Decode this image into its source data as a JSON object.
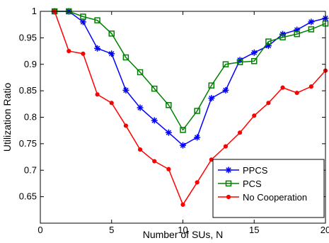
{
  "chart_data": {
    "type": "line",
    "xlabel": "Number of SUs, N",
    "ylabel": "Utilization Ratio",
    "xlim": [
      0,
      20
    ],
    "ylim": [
      0.6,
      1.0
    ],
    "xticks": [
      0,
      5,
      10,
      15,
      20
    ],
    "yticks": [
      0.65,
      0.7,
      0.75,
      0.8,
      0.85,
      0.9,
      0.95,
      1
    ],
    "xtick_labels": [
      "0",
      "5",
      "10",
      "15",
      "20"
    ],
    "ytick_labels": [
      "0.65",
      "0.7",
      "0.75",
      "0.8",
      "0.85",
      "0.9",
      "0.95",
      "1"
    ],
    "grid": false,
    "legend_position": "lower-right",
    "x": [
      1,
      2,
      3,
      4,
      5,
      6,
      7,
      8,
      9,
      10,
      11,
      12,
      13,
      14,
      15,
      16,
      17,
      18,
      19,
      20
    ],
    "series": [
      {
        "name": "PPCS",
        "color": "#0000ff",
        "marker": "asterisk",
        "values": [
          1.0,
          1.0,
          0.98,
          0.93,
          0.92,
          0.851,
          0.818,
          0.794,
          0.771,
          0.747,
          0.762,
          0.836,
          0.851,
          0.908,
          0.922,
          0.935,
          0.957,
          0.965,
          0.98,
          0.987
        ]
      },
      {
        "name": "PCS",
        "color": "#008000",
        "marker": "square",
        "values": [
          1.0,
          1.0,
          0.99,
          0.983,
          0.958,
          0.913,
          0.885,
          0.854,
          0.823,
          0.776,
          0.812,
          0.86,
          0.9,
          0.904,
          0.906,
          0.943,
          0.951,
          0.957,
          0.966,
          0.977
        ]
      },
      {
        "name": "No Cooperation",
        "color": "#ff0000",
        "marker": "dot",
        "values": [
          1.0,
          0.925,
          0.92,
          0.843,
          0.827,
          0.784,
          0.739,
          0.717,
          0.702,
          0.635,
          0.677,
          0.72,
          0.745,
          0.771,
          0.803,
          0.827,
          0.856,
          0.846,
          0.858,
          0.888
        ]
      }
    ]
  }
}
